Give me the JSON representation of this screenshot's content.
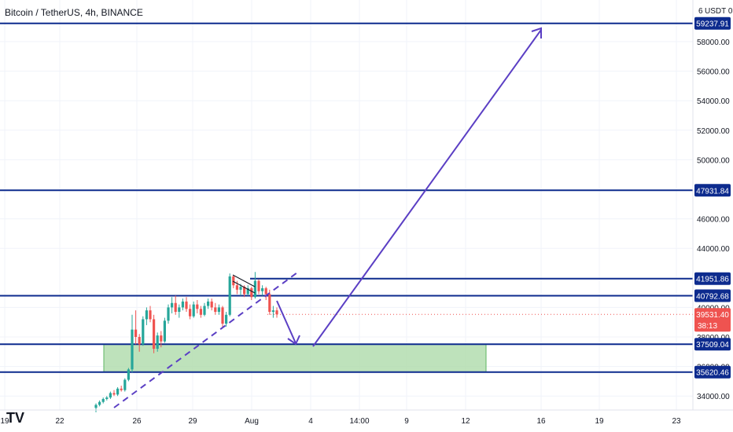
{
  "header": {
    "title": "Bitcoin / TetherUS, 4h, BINANCE",
    "currency": "USDT",
    "currency_suffix": "0",
    "cut_tick": "6"
  },
  "colors": {
    "level_line": "#0d2b8e",
    "arrow": "#5b3fc4",
    "zone_fill": "#b7dfb4",
    "zone_stroke": "#4caf50",
    "up_candle": "#26a69a",
    "down_candle": "#ef5350",
    "price_tag_bg": "#ef5350",
    "level_tag_bg": "#0d2b8e",
    "grid": "#f0f3fa",
    "axis_text": "#131722"
  },
  "chart_data": {
    "type": "candlestick",
    "symbol": "Bitcoin / TetherUS",
    "interval": "4h",
    "exchange": "BINANCE",
    "ylim": [
      33200,
      60800
    ],
    "x_ticks": [
      "19",
      "22",
      "26",
      "29",
      "Aug",
      "4",
      "14:00",
      "9",
      "12",
      "16",
      "19",
      "23"
    ],
    "y_ticks": [
      34000,
      36000,
      38000,
      40000,
      44000,
      46000,
      50000,
      52000,
      54000,
      56000,
      58000
    ],
    "y_tick_labels": [
      "34000.00",
      "36000.00",
      "38000.00",
      "40000.00",
      "44000.00",
      "46000.00",
      "50000.00",
      "52000.00",
      "54000.00",
      "56000.00",
      "58000.00"
    ],
    "horizontal_levels": [
      59237.91,
      47931.84,
      41951.86,
      40792.68,
      37509.04,
      35620.46
    ],
    "horizontal_level_labels": [
      "59237.91",
      "47931.84",
      "41951.86",
      "40792.68",
      "37509.04",
      "35620.46"
    ],
    "current_price": 39531.4,
    "current_price_label": "39531.40",
    "countdown": "38:13",
    "demand_zone": {
      "from_date": "Jul 24",
      "to_date": "Aug 12",
      "low": 35620.46,
      "high": 37509.04
    },
    "trendline": {
      "from": [
        "Jul 24",
        33300
      ],
      "to": [
        "Aug 3",
        42400
      ]
    },
    "projection_path": [
      [
        "Aug 2",
        40200
      ],
      [
        "Aug 3",
        37600
      ],
      [
        "Aug 4",
        37500
      ],
      [
        "Aug 16",
        59200
      ]
    ],
    "channel": {
      "from": [
        "Jul 31",
        41900
      ],
      "to": [
        "Aug 1",
        40800
      ]
    },
    "candles_ohlc": [
      [
        33200,
        33500,
        32900,
        33400
      ],
      [
        33400,
        33700,
        33300,
        33600
      ],
      [
        33600,
        33900,
        33500,
        33800
      ],
      [
        33800,
        34000,
        33700,
        33900
      ],
      [
        33900,
        34300,
        33800,
        34200
      ],
      [
        34200,
        34400,
        34000,
        34100
      ],
      [
        34100,
        34600,
        34000,
        34500
      ],
      [
        34500,
        34700,
        34300,
        34400
      ],
      [
        34400,
        35200,
        34300,
        35100
      ],
      [
        35100,
        35900,
        35000,
        35800
      ],
      [
        35800,
        39500,
        35600,
        38500
      ],
      [
        38500,
        39800,
        37500,
        38000
      ],
      [
        38000,
        38200,
        37000,
        37500
      ],
      [
        37500,
        39400,
        37400,
        39200
      ],
      [
        39200,
        40000,
        38800,
        39800
      ],
      [
        39800,
        40100,
        39000,
        39200
      ],
      [
        39200,
        39500,
        36900,
        37200
      ],
      [
        37200,
        38300,
        37000,
        38100
      ],
      [
        38100,
        38400,
        37300,
        37700
      ],
      [
        37700,
        39300,
        37600,
        39100
      ],
      [
        39100,
        40200,
        38900,
        40000
      ],
      [
        40000,
        40700,
        39600,
        40300
      ],
      [
        40300,
        40800,
        39500,
        39700
      ],
      [
        39700,
        40200,
        39300,
        40000
      ],
      [
        40000,
        40600,
        39800,
        40400
      ],
      [
        40400,
        40700,
        39700,
        39900
      ],
      [
        39900,
        40200,
        39200,
        39400
      ],
      [
        39400,
        40400,
        39300,
        40200
      ],
      [
        40200,
        40500,
        39600,
        39900
      ],
      [
        39900,
        40100,
        39300,
        39500
      ],
      [
        39500,
        40300,
        39400,
        40100
      ],
      [
        40100,
        40600,
        39900,
        40400
      ],
      [
        40400,
        40600,
        39800,
        40000
      ],
      [
        40000,
        40300,
        39500,
        39700
      ],
      [
        39700,
        40200,
        39500,
        40000
      ],
      [
        40000,
        40100,
        38600,
        38900
      ],
      [
        38900,
        39700,
        38700,
        39500
      ],
      [
        39500,
        42300,
        39400,
        42100
      ],
      [
        42100,
        42200,
        41300,
        41500
      ],
      [
        41500,
        41800,
        40900,
        41200
      ],
      [
        41200,
        41600,
        40800,
        41400
      ],
      [
        41400,
        41500,
        40700,
        40900
      ],
      [
        40900,
        41500,
        40800,
        41300
      ],
      [
        41300,
        41400,
        40500,
        40700
      ],
      [
        40700,
        42400,
        40600,
        41800
      ],
      [
        41800,
        41900,
        40900,
        41100
      ],
      [
        41100,
        41500,
        40800,
        41300
      ],
      [
        41300,
        41400,
        40500,
        40900
      ],
      [
        40900,
        41200,
        39500,
        39700
      ],
      [
        39700,
        40100,
        39300,
        39800
      ],
      [
        39800,
        40000,
        39300,
        39531
      ]
    ]
  }
}
